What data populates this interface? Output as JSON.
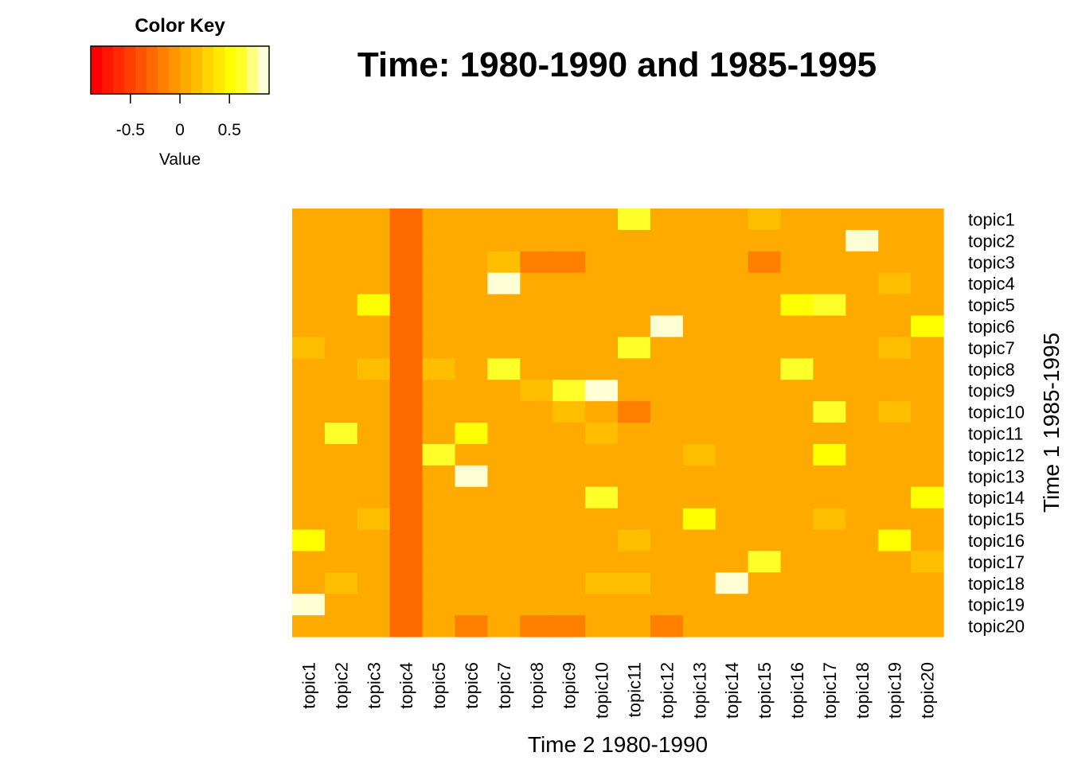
{
  "chart_data": {
    "type": "heatmap",
    "title": "Time: 1980-1990 and 1985-1995",
    "xlabel": "Time 2 1980-1990",
    "ylabel": "Time 1 1985-1995",
    "x_categories": [
      "topic1",
      "topic2",
      "topic3",
      "topic4",
      "topic5",
      "topic6",
      "topic7",
      "topic8",
      "topic9",
      "topic10",
      "topic11",
      "topic12",
      "topic13",
      "topic14",
      "topic15",
      "topic16",
      "topic17",
      "topic18",
      "topic19",
      "topic20"
    ],
    "y_categories": [
      "topic1",
      "topic2",
      "topic3",
      "topic4",
      "topic5",
      "topic6",
      "topic7",
      "topic8",
      "topic9",
      "topic10",
      "topic11",
      "topic12",
      "topic13",
      "topic14",
      "topic15",
      "topic16",
      "topic17",
      "topic18",
      "topic19",
      "topic20"
    ],
    "values": [
      [
        0.05,
        0.05,
        0.05,
        -0.25,
        0.05,
        0.05,
        0.05,
        0.05,
        0.05,
        0.05,
        0.6,
        0.05,
        0.05,
        0.05,
        0.2,
        0.05,
        0.05,
        0.05,
        0.05,
        0.05
      ],
      [
        0.05,
        0.05,
        0.05,
        -0.25,
        0.05,
        0.05,
        0.05,
        0.05,
        0.05,
        0.05,
        0.05,
        0.05,
        0.05,
        0.05,
        0.05,
        0.05,
        0.05,
        0.88,
        0.05,
        0.05
      ],
      [
        0.05,
        0.05,
        0.05,
        -0.25,
        0.05,
        0.05,
        0.2,
        -0.2,
        -0.2,
        0.05,
        0.05,
        0.05,
        0.05,
        0.05,
        -0.2,
        0.05,
        0.05,
        0.05,
        0.05,
        0.05
      ],
      [
        0.05,
        0.05,
        0.05,
        -0.25,
        0.05,
        0.05,
        0.8,
        0.05,
        0.05,
        0.05,
        0.05,
        0.05,
        0.05,
        0.05,
        0.05,
        0.05,
        0.05,
        0.05,
        0.2,
        0.05
      ],
      [
        0.05,
        0.05,
        0.45,
        -0.25,
        0.05,
        0.05,
        0.05,
        0.05,
        0.05,
        0.05,
        0.05,
        0.05,
        0.05,
        0.05,
        0.05,
        0.45,
        0.6,
        0.05,
        0.05,
        0.05
      ],
      [
        0.05,
        0.05,
        0.05,
        -0.25,
        0.05,
        0.05,
        0.05,
        0.05,
        0.05,
        0.05,
        0.05,
        0.88,
        0.05,
        0.05,
        0.05,
        0.05,
        0.05,
        0.05,
        0.05,
        0.45
      ],
      [
        0.2,
        0.05,
        0.05,
        -0.25,
        0.05,
        0.05,
        0.05,
        0.05,
        0.05,
        0.05,
        0.6,
        0.05,
        0.05,
        0.05,
        0.05,
        0.05,
        0.05,
        0.05,
        0.2,
        0.05
      ],
      [
        0.05,
        0.05,
        0.2,
        -0.25,
        0.2,
        0.05,
        0.6,
        0.05,
        0.05,
        0.05,
        0.05,
        0.05,
        0.05,
        0.05,
        0.05,
        0.6,
        0.05,
        0.05,
        0.05,
        0.05
      ],
      [
        0.05,
        0.05,
        0.05,
        -0.25,
        0.05,
        0.05,
        0.05,
        0.2,
        0.6,
        0.8,
        0.05,
        0.05,
        0.05,
        0.05,
        0.05,
        0.05,
        0.05,
        0.05,
        0.05,
        0.05
      ],
      [
        0.05,
        0.05,
        0.05,
        -0.25,
        0.05,
        0.05,
        0.05,
        0.05,
        0.2,
        0.05,
        -0.2,
        0.05,
        0.05,
        0.05,
        0.05,
        0.05,
        0.6,
        0.05,
        0.2,
        0.05
      ],
      [
        0.05,
        0.6,
        0.05,
        -0.25,
        0.05,
        0.45,
        0.05,
        0.05,
        0.05,
        0.2,
        0.05,
        0.05,
        0.05,
        0.05,
        0.05,
        0.05,
        0.05,
        0.05,
        0.05,
        0.05
      ],
      [
        0.05,
        0.05,
        0.05,
        -0.25,
        0.6,
        0.05,
        0.05,
        0.05,
        0.05,
        0.05,
        0.05,
        0.05,
        0.2,
        0.05,
        0.05,
        0.05,
        0.45,
        0.05,
        0.05,
        0.05
      ],
      [
        0.05,
        0.05,
        0.05,
        -0.25,
        0.05,
        0.8,
        0.05,
        0.05,
        0.05,
        0.05,
        0.05,
        0.05,
        0.05,
        0.05,
        0.05,
        0.05,
        0.05,
        0.05,
        0.05,
        0.05
      ],
      [
        0.05,
        0.05,
        0.05,
        -0.25,
        0.05,
        0.05,
        0.05,
        0.05,
        0.05,
        0.6,
        0.05,
        0.05,
        0.05,
        0.05,
        0.05,
        0.05,
        0.05,
        0.05,
        0.05,
        0.45
      ],
      [
        0.05,
        0.05,
        0.2,
        -0.25,
        0.05,
        0.05,
        0.05,
        0.05,
        0.05,
        0.05,
        0.05,
        0.05,
        0.45,
        0.05,
        0.05,
        0.05,
        0.2,
        0.05,
        0.05,
        0.05
      ],
      [
        0.45,
        0.05,
        0.05,
        -0.25,
        0.05,
        0.05,
        0.05,
        0.05,
        0.05,
        0.05,
        0.2,
        0.05,
        0.05,
        0.05,
        0.05,
        0.05,
        0.05,
        0.05,
        0.45,
        0.05
      ],
      [
        0.05,
        0.05,
        0.05,
        -0.25,
        0.05,
        0.05,
        0.05,
        0.05,
        0.05,
        0.05,
        0.05,
        0.05,
        0.05,
        0.05,
        0.6,
        0.05,
        0.05,
        0.05,
        0.05,
        0.2
      ],
      [
        0.05,
        0.2,
        0.05,
        -0.25,
        0.05,
        0.05,
        0.05,
        0.05,
        0.05,
        0.2,
        0.2,
        0.05,
        0.05,
        0.8,
        0.05,
        0.05,
        0.05,
        0.05,
        0.05,
        0.05
      ],
      [
        0.8,
        0.05,
        0.05,
        -0.25,
        0.05,
        0.05,
        0.05,
        0.05,
        0.05,
        0.05,
        0.05,
        0.05,
        0.05,
        0.05,
        0.05,
        0.05,
        0.05,
        0.05,
        0.05,
        0.05
      ],
      [
        0.05,
        0.05,
        0.05,
        -0.25,
        0.05,
        -0.2,
        0.05,
        -0.2,
        -0.2,
        0.05,
        0.05,
        -0.2,
        0.05,
        0.05,
        0.05,
        0.05,
        0.05,
        0.05,
        0.05,
        0.05
      ]
    ],
    "color_key": {
      "title": "Color Key",
      "label": "Value",
      "ticks": [
        "-0.5",
        "0",
        "0.5"
      ],
      "tick_values": [
        -0.5,
        0,
        0.5
      ],
      "range": [
        -0.9,
        0.9
      ],
      "colors": [
        "#FF0000",
        "#FF1500",
        "#FF2A00",
        "#FF3F00",
        "#FF5500",
        "#FF6A00",
        "#FF7F00",
        "#FF9400",
        "#FFAA00",
        "#FFBF00",
        "#FFD400",
        "#FFE900",
        "#FFFF00",
        "#FFFF2A",
        "#FFFF80",
        "#FFFFD5"
      ]
    }
  }
}
